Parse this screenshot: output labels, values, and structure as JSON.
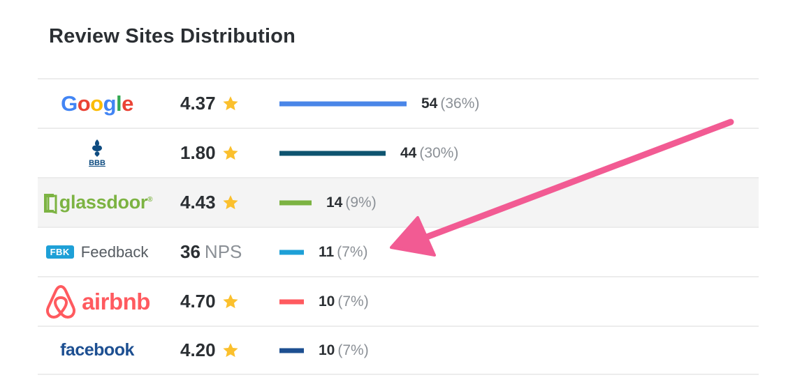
{
  "title": "Review Sites Distribution",
  "colors": {
    "google_bar": "#4a86e8",
    "bbb_bar": "#0e5470",
    "glassdoor_bar": "#7cb342",
    "feedback_bar": "#1ea0d7",
    "airbnb_bar": "#ff5a5f",
    "facebook_bar": "#1d4f91",
    "star": "#fbc02d",
    "arrow": "#f25b93"
  },
  "rows": [
    {
      "site": "google-logo",
      "logo_parts": [
        "G",
        "o",
        "o",
        "g",
        "l",
        "e"
      ],
      "rating": "4.37",
      "unit": "",
      "show_star": true,
      "count": "54",
      "pct": "(36%)",
      "share": 0.36,
      "shaded": false
    },
    {
      "site": "bbb-logo",
      "logo_text": "BBB",
      "rating": "1.80",
      "unit": "",
      "show_star": true,
      "count": "44",
      "pct": "(30%)",
      "share": 0.3,
      "shaded": false
    },
    {
      "site": "glassdoor-logo",
      "logo_text": "glassdoor",
      "logo_mark": "®",
      "rating": "4.43",
      "unit": "",
      "show_star": true,
      "count": "14",
      "pct": "(9%)",
      "share": 0.09,
      "shaded": true
    },
    {
      "site": "feedback-logo",
      "logo_badge": "FBK",
      "logo_text": "Feedback",
      "rating": "36",
      "unit": "NPS",
      "show_star": false,
      "count": "11",
      "pct": "(7%)",
      "share": 0.07,
      "shaded": false
    },
    {
      "site": "airbnb-logo",
      "logo_text": "airbnb",
      "rating": "4.70",
      "unit": "",
      "show_star": true,
      "count": "10",
      "pct": "(7%)",
      "share": 0.07,
      "shaded": false
    },
    {
      "site": "facebook-logo",
      "logo_text": "facebook",
      "rating": "4.20",
      "unit": "",
      "show_star": true,
      "count": "10",
      "pct": "(7%)",
      "share": 0.07,
      "shaded": false
    }
  ]
}
